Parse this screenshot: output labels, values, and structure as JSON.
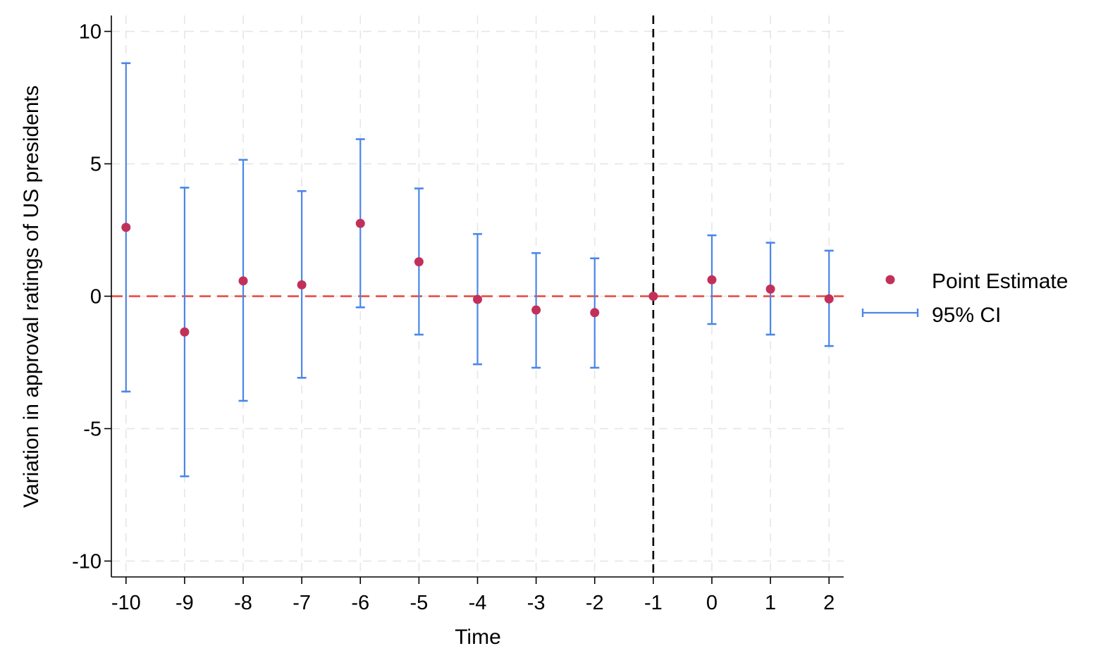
{
  "chart_data": {
    "type": "scatter",
    "title": "",
    "xlabel": "Time",
    "ylabel": "Variation in approval ratings of US presidents",
    "x": [
      -10,
      -9,
      -8,
      -7,
      -6,
      -5,
      -4,
      -3,
      -2,
      -1,
      0,
      1,
      2
    ],
    "x_tick_labels": [
      "-10",
      "-9",
      "-8",
      "-7",
      "-6",
      "-5",
      "-4",
      "-3",
      "-2",
      "-1",
      "0",
      "1",
      "2"
    ],
    "y_ticks": [
      10,
      5,
      0,
      -5,
      -10
    ],
    "y_tick_labels": [
      "10",
      "5",
      "0",
      "-5",
      "-10"
    ],
    "xlim": [
      -10.25,
      2.25
    ],
    "ylim": [
      -10.6,
      10.6
    ],
    "grid": true,
    "legend_position": "right",
    "series": [
      {
        "name": "Point Estimate",
        "kind": "point",
        "color": "#c2305a",
        "values": [
          2.6,
          -1.35,
          0.58,
          0.43,
          2.75,
          1.3,
          -0.12,
          -0.52,
          -0.62,
          0.0,
          0.62,
          0.27,
          -0.1
        ]
      },
      {
        "name": "95% CI",
        "kind": "errorbar",
        "color": "#4a86e8",
        "lower": [
          -3.6,
          -6.8,
          -3.95,
          -3.08,
          -0.42,
          -1.45,
          -2.57,
          -2.7,
          -2.7,
          0.0,
          -1.05,
          -1.45,
          -1.88
        ],
        "upper": [
          8.8,
          4.1,
          5.15,
          3.97,
          5.93,
          4.07,
          2.35,
          1.63,
          1.43,
          0.0,
          2.3,
          2.02,
          1.72
        ]
      }
    ],
    "reference_lines": [
      {
        "axis": "y",
        "value": 0,
        "style": "dashed",
        "color": "#e8453c"
      },
      {
        "axis": "x",
        "value": -1,
        "style": "dashed",
        "color": "#000000"
      }
    ]
  }
}
